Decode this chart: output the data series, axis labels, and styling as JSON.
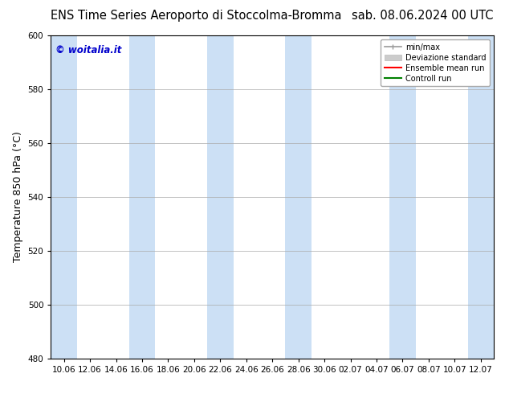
{
  "title_left": "ENS Time Series Aeroporto di Stoccolma-Bromma",
  "title_right": "sab. 08.06.2024 00 UTC",
  "ylabel": "Temperature 850 hPa (°C)",
  "ylim": [
    480,
    600
  ],
  "yticks": [
    480,
    500,
    520,
    540,
    560,
    580,
    600
  ],
  "xtick_labels": [
    "10.06",
    "12.06",
    "14.06",
    "16.06",
    "18.06",
    "20.06",
    "22.06",
    "24.06",
    "26.06",
    "28.06",
    "30.06",
    "02.07",
    "04.07",
    "06.07",
    "08.07",
    "10.07",
    "12.07"
  ],
  "bg_color": "#ffffff",
  "plot_bg_color": "#ffffff",
  "shaded_band_color": "#cce0f5",
  "shaded_band_alpha": 1.0,
  "watermark_text": "© woitalia.it",
  "watermark_color": "#0000cc",
  "shaded_indices": [
    0,
    3,
    6,
    9,
    13,
    16
  ],
  "grid_color": "#aaaaaa",
  "tick_label_fontsize": 7.5,
  "axis_label_fontsize": 9,
  "title_fontsize": 10.5
}
